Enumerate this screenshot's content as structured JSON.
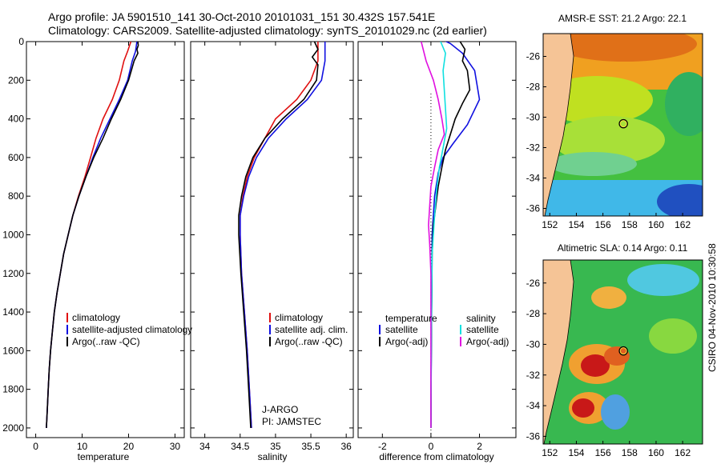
{
  "header": {
    "line1": "Argo profile: JA 5901510_141 30-Oct-2010 20101031_151 30.432S 157.541E",
    "line2": "Climatology: CARS2009. Satellite-adjusted climatology: synTS_20101029.nc (2d earlier)"
  },
  "credit": "CSIRO 04-Nov-2010 10:30:58",
  "colors": {
    "clim": "#e01010",
    "sat": "#1010e0",
    "argo": "#000000",
    "sal_sat": "#10e0e0",
    "sal_argo": "#e010e0",
    "land": "#f5c496"
  },
  "chart_data": [
    {
      "type": "line",
      "id": "temperature",
      "xlabel": "temperature",
      "ylabel": "",
      "xlim": [
        -2,
        32
      ],
      "ylim": [
        0,
        2050
      ],
      "yreversed": true,
      "xticks": [
        "0",
        "10",
        "20",
        "30"
      ],
      "xtick_values": [
        0,
        10,
        20,
        30
      ],
      "yticks": [
        "0",
        "200",
        "400",
        "600",
        "800",
        "1000",
        "1200",
        "1400",
        "1600",
        "1800",
        "2000"
      ],
      "ytick_values": [
        0,
        200,
        400,
        600,
        800,
        1000,
        1200,
        1400,
        1600,
        1800,
        2000
      ],
      "legend": [
        "climatology",
        "satellite-adjusted climatology",
        "Argo(..raw -QC)"
      ],
      "series": [
        {
          "name": "climatology",
          "color_key": "clim",
          "points": [
            [
              20.5,
              0
            ],
            [
              19.8,
              50
            ],
            [
              19.0,
              100
            ],
            [
              18.0,
              200
            ],
            [
              16.5,
              300
            ],
            [
              14.5,
              400
            ],
            [
              13.0,
              500
            ],
            [
              11.8,
              600
            ],
            [
              10.6,
              700
            ],
            [
              9.2,
              800
            ],
            [
              8.0,
              900
            ],
            [
              7.0,
              1000
            ],
            [
              6.0,
              1100
            ],
            [
              5.3,
              1200
            ],
            [
              4.6,
              1300
            ],
            [
              4.0,
              1400
            ],
            [
              3.6,
              1500
            ],
            [
              3.2,
              1600
            ],
            [
              2.9,
              1700
            ],
            [
              2.7,
              1800
            ],
            [
              2.5,
              1900
            ],
            [
              2.3,
              2000
            ]
          ]
        },
        {
          "name": "satellite-adjusted climatology",
          "color_key": "sat",
          "points": [
            [
              21.8,
              0
            ],
            [
              21.5,
              50
            ],
            [
              20.8,
              100
            ],
            [
              19.8,
              200
            ],
            [
              18.0,
              300
            ],
            [
              16.0,
              400
            ],
            [
              14.0,
              500
            ],
            [
              12.3,
              600
            ],
            [
              10.8,
              700
            ],
            [
              9.3,
              800
            ],
            [
              8.0,
              900
            ],
            [
              7.0,
              1000
            ],
            [
              6.0,
              1100
            ],
            [
              5.3,
              1200
            ],
            [
              4.6,
              1300
            ],
            [
              4.0,
              1400
            ],
            [
              3.6,
              1500
            ],
            [
              3.2,
              1600
            ],
            [
              2.9,
              1700
            ],
            [
              2.7,
              1800
            ],
            [
              2.5,
              1900
            ],
            [
              2.3,
              2000
            ]
          ]
        },
        {
          "name": "Argo(..raw -QC)",
          "color_key": "argo",
          "points": [
            [
              22.0,
              0
            ],
            [
              22.1,
              20
            ],
            [
              21.8,
              40
            ],
            [
              22.0,
              60
            ],
            [
              21.2,
              100
            ],
            [
              20.0,
              200
            ],
            [
              18.3,
              300
            ],
            [
              16.3,
              400
            ],
            [
              14.5,
              500
            ],
            [
              12.5,
              600
            ],
            [
              10.8,
              700
            ],
            [
              9.3,
              800
            ],
            [
              8.0,
              900
            ],
            [
              7.0,
              1000
            ],
            [
              6.0,
              1100
            ],
            [
              5.3,
              1200
            ],
            [
              4.6,
              1300
            ],
            [
              4.0,
              1400
            ],
            [
              3.6,
              1500
            ],
            [
              3.2,
              1600
            ],
            [
              2.9,
              1700
            ],
            [
              2.7,
              1800
            ],
            [
              2.5,
              1900
            ],
            [
              2.3,
              2000
            ]
          ]
        }
      ]
    },
    {
      "type": "line",
      "id": "salinity",
      "xlabel": "salinity",
      "xlim": [
        33.8,
        36.1
      ],
      "ylim": [
        0,
        2050
      ],
      "yreversed": true,
      "xticks": [
        "34",
        "34.5",
        "35",
        "35.5",
        "36"
      ],
      "xtick_values": [
        34,
        34.5,
        35,
        35.5,
        36
      ],
      "legend": [
        "climatology",
        "satellite adj. clim.",
        "Argo(..raw -QC)"
      ],
      "annotation": [
        "J-ARGO",
        "PI: JAMSTEC"
      ],
      "series": [
        {
          "name": "climatology",
          "color_key": "clim",
          "points": [
            [
              35.6,
              0
            ],
            [
              35.6,
              100
            ],
            [
              35.5,
              200
            ],
            [
              35.3,
              300
            ],
            [
              35.0,
              400
            ],
            [
              34.85,
              500
            ],
            [
              34.7,
              600
            ],
            [
              34.6,
              700
            ],
            [
              34.54,
              800
            ],
            [
              34.5,
              900
            ],
            [
              34.5,
              1000
            ],
            [
              34.52,
              1200
            ],
            [
              34.56,
              1400
            ],
            [
              34.6,
              1600
            ],
            [
              34.63,
              1800
            ],
            [
              34.66,
              2000
            ]
          ]
        },
        {
          "name": "satellite adj. clim.",
          "color_key": "sat",
          "points": [
            [
              35.7,
              0
            ],
            [
              35.7,
              100
            ],
            [
              35.65,
              200
            ],
            [
              35.45,
              300
            ],
            [
              35.15,
              400
            ],
            [
              34.9,
              500
            ],
            [
              34.73,
              600
            ],
            [
              34.62,
              700
            ],
            [
              34.55,
              800
            ],
            [
              34.5,
              900
            ],
            [
              34.5,
              1000
            ],
            [
              34.52,
              1200
            ],
            [
              34.56,
              1400
            ],
            [
              34.6,
              1600
            ],
            [
              34.63,
              1800
            ],
            [
              34.66,
              2000
            ]
          ]
        },
        {
          "name": "Argo(..raw -QC)",
          "color_key": "argo",
          "points": [
            [
              35.55,
              0
            ],
            [
              35.6,
              40
            ],
            [
              35.52,
              80
            ],
            [
              35.6,
              120
            ],
            [
              35.58,
              200
            ],
            [
              35.4,
              300
            ],
            [
              35.1,
              400
            ],
            [
              34.85,
              500
            ],
            [
              34.68,
              600
            ],
            [
              34.58,
              700
            ],
            [
              34.52,
              800
            ],
            [
              34.48,
              900
            ],
            [
              34.48,
              1000
            ],
            [
              34.51,
              1200
            ],
            [
              34.55,
              1400
            ],
            [
              34.59,
              1600
            ],
            [
              34.62,
              1800
            ],
            [
              34.65,
              2000
            ]
          ]
        }
      ]
    },
    {
      "type": "line",
      "id": "difference",
      "xlabel": "difference from climatology",
      "xlim": [
        -3,
        3.5
      ],
      "ylim": [
        0,
        2050
      ],
      "yreversed": true,
      "xticks": [
        "-2",
        "0",
        "2"
      ],
      "xtick_values": [
        -2,
        0,
        2
      ],
      "legend_left": [
        "temperature",
        "satellite",
        "Argo(-adj)"
      ],
      "legend_right": [
        "salinity",
        "satellite",
        "Argo(-adj)"
      ],
      "series": [
        {
          "name": "temperature satellite",
          "color_key": "sat",
          "points": [
            [
              0.3,
              -20
            ],
            [
              0.8,
              10
            ],
            [
              1.3,
              60
            ],
            [
              1.8,
              150
            ],
            [
              2.0,
              300
            ],
            [
              1.5,
              430
            ],
            [
              0.9,
              530
            ],
            [
              0.5,
              600
            ],
            [
              0.3,
              680
            ],
            [
              0.15,
              800
            ],
            [
              0.05,
              1000
            ],
            [
              0.02,
              1500
            ],
            [
              0.0,
              2000
            ]
          ]
        },
        {
          "name": "temperature Argo(-adj)",
          "color_key": "argo",
          "points": [
            [
              1.2,
              0
            ],
            [
              1.4,
              40
            ],
            [
              1.3,
              100
            ],
            [
              1.5,
              150
            ],
            [
              1.6,
              250
            ],
            [
              1.3,
              320
            ],
            [
              1.0,
              400
            ],
            [
              0.8,
              480
            ],
            [
              0.6,
              560
            ],
            [
              0.45,
              650
            ],
            [
              0.3,
              750
            ],
            [
              0.2,
              850
            ],
            [
              0.1,
              950
            ],
            [
              0.05,
              1100
            ],
            [
              0.03,
              1400
            ],
            [
              0.01,
              1700
            ],
            [
              0.0,
              2000
            ]
          ]
        },
        {
          "name": "salinity satellite",
          "color_key": "sal_sat",
          "points": [
            [
              0.4,
              0
            ],
            [
              0.6,
              60
            ],
            [
              0.5,
              150
            ],
            [
              0.55,
              250
            ],
            [
              0.6,
              350
            ],
            [
              0.65,
              450
            ],
            [
              0.5,
              550
            ],
            [
              0.35,
              650
            ],
            [
              0.25,
              750
            ],
            [
              0.15,
              900
            ],
            [
              0.05,
              1100
            ],
            [
              0.02,
              1500
            ],
            [
              0.0,
              2000
            ]
          ]
        },
        {
          "name": "salinity Argo(-adj)",
          "color_key": "sal_argo",
          "points": [
            [
              -0.4,
              0
            ],
            [
              -0.2,
              100
            ],
            [
              0.1,
              200
            ],
            [
              0.3,
              300
            ],
            [
              0.45,
              400
            ],
            [
              0.55,
              480
            ],
            [
              0.3,
              560
            ],
            [
              0.15,
              650
            ],
            [
              0.0,
              750
            ],
            [
              -0.05,
              850
            ],
            [
              -0.1,
              950
            ],
            [
              -0.05,
              1050
            ],
            [
              0.0,
              1200
            ],
            [
              0.0,
              1500
            ],
            [
              0.0,
              2000
            ]
          ]
        }
      ]
    },
    {
      "type": "heatmap",
      "id": "sst-map",
      "title": "AMSR-E SST: 21.2 Argo: 22.1",
      "xlim": [
        151.5,
        163.5
      ],
      "ylim": [
        -36.5,
        -24.5
      ],
      "xticks": [
        "152",
        "154",
        "156",
        "158",
        "160",
        "162"
      ],
      "xtick_values": [
        152,
        154,
        156,
        158,
        160,
        162
      ],
      "yticks": [
        "-26",
        "-28",
        "-30",
        "-32",
        "-34",
        "-36"
      ],
      "ytick_values": [
        -26,
        -28,
        -30,
        -32,
        -34,
        -36
      ],
      "argo_point": [
        157.54,
        -30.43
      ]
    },
    {
      "type": "heatmap",
      "id": "sla-map",
      "title": "Altimetric SLA: 0.14 Argo: 0.11",
      "xlim": [
        151.5,
        163.5
      ],
      "ylim": [
        -36.5,
        -24.5
      ],
      "xticks": [
        "152",
        "154",
        "156",
        "158",
        "160",
        "162"
      ],
      "xtick_values": [
        152,
        154,
        156,
        158,
        160,
        162
      ],
      "yticks": [
        "-26",
        "-28",
        "-30",
        "-32",
        "-34",
        "-36"
      ],
      "ytick_values": [
        -26,
        -28,
        -30,
        -32,
        -34,
        -36
      ],
      "argo_point": [
        157.54,
        -30.43
      ]
    }
  ]
}
